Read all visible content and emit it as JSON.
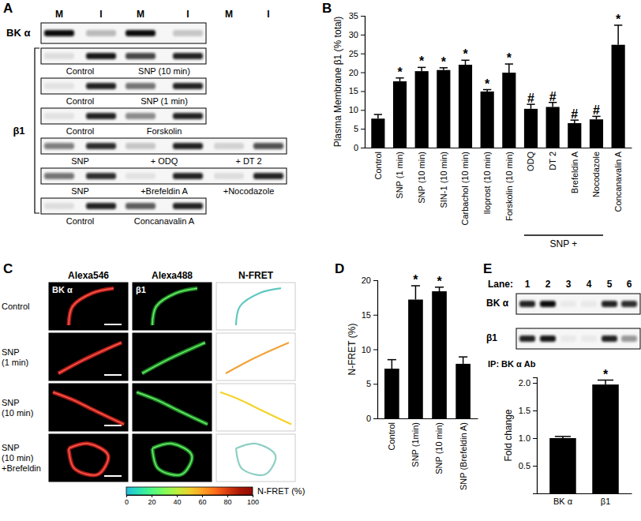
{
  "panel_labels": [
    "A",
    "B",
    "C",
    "D",
    "E"
  ],
  "blots_a": {
    "lanes": [
      "M",
      "I",
      "M",
      "I",
      "M",
      "I"
    ],
    "bk_label": "BK α",
    "beta_label": "β1",
    "bk_intensity": [
      1.0,
      0.25,
      1.0,
      0.2
    ],
    "beta_rows": [
      {
        "intensity": [
          0.1,
          0.95,
          0.75,
          0.9
        ],
        "captions": [
          "Control",
          "SNP (10 min)"
        ]
      },
      {
        "intensity": [
          0.08,
          0.9,
          0.55,
          0.9
        ],
        "captions": [
          "Control",
          "SNP (1 min)"
        ]
      },
      {
        "intensity": [
          0.08,
          0.9,
          0.45,
          0.9
        ],
        "captions": [
          "Control",
          "Forskolin"
        ]
      },
      {
        "intensity": [
          0.5,
          0.85,
          0.2,
          0.9,
          0.15,
          0.7
        ],
        "captions": [
          "SNP",
          "+ ODQ",
          "+ DT 2"
        ]
      },
      {
        "intensity": [
          0.55,
          0.85,
          0.08,
          0.9,
          0.1,
          0.9
        ],
        "captions": [
          "SNP",
          "+Brefeldin A",
          "+Nocodazole"
        ]
      },
      {
        "intensity": [
          0.1,
          0.9,
          0.65,
          0.9
        ],
        "captions": [
          "Control",
          "Concanavalin A"
        ]
      }
    ]
  },
  "images_c": {
    "columns": [
      "Alexa546",
      "Alexa488",
      "N-FRET"
    ],
    "channel_labels": [
      "BK α",
      "β1"
    ],
    "rows": [
      [
        "Control"
      ],
      [
        "SNP",
        "(1 min)"
      ],
      [
        "SNP",
        "(10 min)"
      ],
      [
        "SNP",
        "(10 min)",
        "+Brefeldin"
      ]
    ],
    "colorbar": {
      "label": "N-FRET (%)",
      "range": [
        0,
        100
      ],
      "ticks": [
        0,
        20,
        40,
        60,
        80,
        100
      ]
    }
  },
  "blots_e": {
    "lane_title": "Lane:",
    "lanes": [
      1,
      2,
      3,
      4,
      5,
      6
    ],
    "rows": [
      {
        "label": "BK α",
        "intensity": [
          0.9,
          1.0,
          0.05,
          0.05,
          0.9,
          0.85
        ]
      },
      {
        "label": "β1",
        "intensity": [
          0.9,
          0.95,
          0.05,
          0.05,
          0.9,
          0.4
        ]
      }
    ],
    "ip_label": "IP: BK α Ab"
  },
  "chart_data": [
    {
      "type": "bar",
      "ylabel": "Plasma Membrane β1 (% total)",
      "categories": [
        "Control",
        "SNP (1 min)",
        "SNP (10 min)",
        "SIN-1 (10 min)",
        "Carbachol (10 min)",
        "Iloprost (10 min)",
        "Forskolin (10 min)",
        "ODQ",
        "DT 2",
        "Brefeldin A",
        "Nocodazole",
        "Concanavalin A"
      ],
      "values": [
        7.7,
        17.6,
        20.3,
        20.6,
        22.0,
        14.9,
        19.9,
        10.3,
        10.8,
        6.5,
        7.5,
        27.3
      ],
      "errors": [
        1.1,
        0.9,
        1.0,
        0.6,
        1.2,
        0.5,
        2.3,
        1.2,
        1.2,
        0.8,
        0.8,
        5.2
      ],
      "significance": [
        null,
        "*",
        "*",
        "*",
        "*",
        "*",
        "*",
        "#",
        "#",
        "#",
        "#",
        "*"
      ],
      "group_label": {
        "text": "SNP +",
        "categories": [
          "ODQ",
          "DT 2",
          "Brefeldin A",
          "Nocodazole"
        ]
      },
      "color": "#000000",
      "ylim": [
        0,
        35
      ],
      "yticks": [
        0,
        5,
        10,
        15,
        20,
        25,
        30,
        35
      ]
    },
    {
      "type": "bar",
      "ylabel": "N-FRET (%)",
      "categories": [
        "Control",
        "SNP (1min)",
        "SNP (10 min)",
        "SNP (Brefeldin A)"
      ],
      "values": [
        7.2,
        17.2,
        18.4,
        7.9
      ],
      "errors": [
        1.3,
        2.0,
        0.6,
        1.0
      ],
      "significance": [
        null,
        "*",
        "*",
        null
      ],
      "color": "#000000",
      "ylim": [
        0,
        20
      ],
      "yticks": [
        0,
        5,
        10,
        15,
        20
      ]
    },
    {
      "type": "bar",
      "ylabel": "Fold change",
      "categories": [
        "BK α",
        "β1"
      ],
      "values": [
        1.0,
        1.97
      ],
      "errors": [
        0.03,
        0.08
      ],
      "significance": [
        null,
        "*"
      ],
      "color": "#000000",
      "ylim": [
        0,
        2.1
      ],
      "yticks": [
        {
          "value": 0.5,
          "label": "0.5"
        },
        {
          "value": 1.0,
          "label": "1.0"
        },
        {
          "value": 1.5,
          "label": "1.5"
        },
        {
          "value": 2.0,
          "label": "2.0"
        }
      ]
    }
  ]
}
